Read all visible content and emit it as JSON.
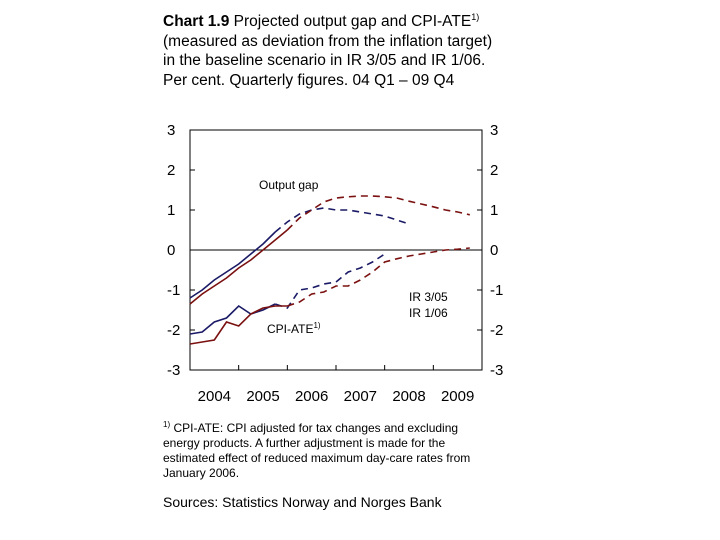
{
  "title": {
    "chart_number": "Chart 1.9",
    "text_a": "Projected output gap and CPI-ATE",
    "sup": "1)",
    "text_b": "(measured as deviation from the inflation target) in the baseline scenario in IR 3/05 and IR 1/06. Per cent. Quarterly figures. 04 Q1 – 09 Q4"
  },
  "footnote": {
    "sup": "1)",
    "text": "CPI-ATE: CPI adjusted for tax changes and excluding energy products. A further adjustment is made for the estimated effect of reduced maximum day-care rates from January 2006."
  },
  "sources": "Sources: Statistics Norway and Norges Bank",
  "chart_data": {
    "type": "line",
    "ylim": [
      -3,
      3
    ],
    "yticks_left": [
      "3",
      "2",
      "1",
      "0",
      "-1",
      "-2",
      "-3"
    ],
    "yticks_right": [
      "3",
      "2",
      "1",
      "0",
      "-1",
      "-2",
      "-3"
    ],
    "xlim": [
      2004,
      2010
    ],
    "xticks": [
      "2004",
      "2005",
      "2006",
      "2007",
      "2008",
      "2009"
    ],
    "annotations": {
      "output_gap": "Output gap",
      "cpi_ate": "CPI-ATE",
      "cpi_ate_sup": "1)",
      "ir305": "IR 3/05",
      "ir106": "IR 1/06"
    },
    "series": [
      {
        "name": "IR 3/05",
        "color": "#1a1a66",
        "dash_from": 2005.75,
        "groups": [
          {
            "x": [
              2004.0,
              2004.25,
              2004.5,
              2004.75,
              2005.0,
              2005.25,
              2005.5,
              2005.75,
              2006.0,
              2006.25,
              2006.5,
              2006.75,
              2007.0,
              2007.25,
              2007.5,
              2007.75,
              2008.0,
              2008.25,
              2008.5
            ],
            "y": [
              -1.2,
              -1.0,
              -0.75,
              -0.55,
              -0.35,
              -0.1,
              0.15,
              0.45,
              0.7,
              0.9,
              1.0,
              1.05,
              1.0,
              1.0,
              0.95,
              0.9,
              0.85,
              0.75,
              0.65
            ]
          },
          {
            "x": [
              2004.0,
              2004.25,
              2004.5,
              2004.75,
              2005.0,
              2005.25,
              2005.5,
              2005.75,
              2006.0,
              2006.25,
              2006.5,
              2006.75,
              2007.0,
              2007.25,
              2007.5,
              2007.75,
              2008.0
            ],
            "y": [
              -2.1,
              -2.05,
              -1.8,
              -1.7,
              -1.4,
              -1.6,
              -1.5,
              -1.35,
              -1.45,
              -1.0,
              -0.95,
              -0.85,
              -0.8,
              -0.55,
              -0.45,
              -0.3,
              -0.1
            ]
          }
        ]
      },
      {
        "name": "IR 1/06",
        "color": "#7a1010",
        "dash_from": 2006.0,
        "groups": [
          {
            "x": [
              2004.0,
              2004.25,
              2004.5,
              2004.75,
              2005.0,
              2005.25,
              2005.5,
              2005.75,
              2006.0,
              2006.25,
              2006.5,
              2006.75,
              2007.0,
              2007.25,
              2007.5,
              2007.75,
              2008.0,
              2008.25,
              2008.5,
              2008.75,
              2009.0,
              2009.25,
              2009.5,
              2009.75
            ],
            "y": [
              -1.35,
              -1.1,
              -0.9,
              -0.7,
              -0.45,
              -0.25,
              0.0,
              0.25,
              0.5,
              0.8,
              1.0,
              1.2,
              1.3,
              1.33,
              1.35,
              1.35,
              1.33,
              1.3,
              1.22,
              1.15,
              1.08,
              1.0,
              0.95,
              0.88
            ]
          },
          {
            "x": [
              2004.0,
              2004.25,
              2004.5,
              2004.75,
              2005.0,
              2005.25,
              2005.5,
              2005.75,
              2006.0,
              2006.25,
              2006.5,
              2006.75,
              2007.0,
              2007.25,
              2007.5,
              2007.75,
              2008.0,
              2008.25,
              2008.5,
              2008.75,
              2009.0,
              2009.25,
              2009.5,
              2009.75
            ],
            "y": [
              -2.35,
              -2.3,
              -2.25,
              -1.8,
              -1.9,
              -1.6,
              -1.45,
              -1.4,
              -1.4,
              -1.3,
              -1.1,
              -1.05,
              -0.9,
              -0.9,
              -0.75,
              -0.55,
              -0.3,
              -0.22,
              -0.15,
              -0.1,
              -0.05,
              0.0,
              0.02,
              0.05
            ]
          }
        ]
      }
    ]
  }
}
